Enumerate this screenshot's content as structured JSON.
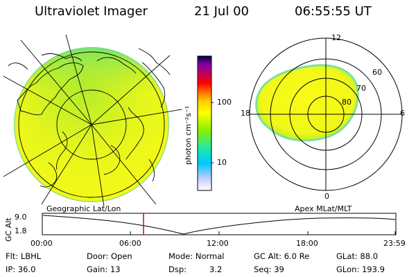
{
  "header": {
    "title": "Ultraviolet Imager",
    "date": "21 Jul 00",
    "time": "06:55:55 UT"
  },
  "colorbar": {
    "unit_label": "photon cm⁻²s⁻¹",
    "ticks": [
      "100",
      "10"
    ],
    "scale": "log",
    "colors": [
      "#ffffff",
      "#cfd0ff",
      "#00c8ff",
      "#19e6b4",
      "#8cf000",
      "#ffff00",
      "#ffd000",
      "#ff8000",
      "#ff0000",
      "#c00060",
      "#8000a0",
      "#000040"
    ]
  },
  "polar_plot": {
    "mlt_labels": {
      "top": "12",
      "right": "6",
      "bottom": "0",
      "left": "18"
    },
    "lat_labels": [
      "60",
      "70",
      "80"
    ]
  },
  "timeline": {
    "left_label": "Geographic Lat/Lon",
    "right_label": "Apex MLat/MLT",
    "axis_title": "GC Alt",
    "y_max": "9.0",
    "y_min": "1.8",
    "x_ticks": [
      "00:00",
      "06:00",
      "12:00",
      "18:00",
      "23:59"
    ],
    "current_time_marker": "06:55:55",
    "marker_color": "#c00000"
  },
  "status": {
    "flt": "Flt: LBHL",
    "door": "Door: Open",
    "mode": "Mode: Normal",
    "gc_alt": "GC Alt: 6.0 Re",
    "glat": "GLat: 88.0",
    "ip": "IP: 36.0",
    "gain": "Gain: 13",
    "dsp_label": "Dsp:",
    "dsp_value": "3.2",
    "seq": "Seq: 39",
    "glon": "GLon: 193.9"
  }
}
